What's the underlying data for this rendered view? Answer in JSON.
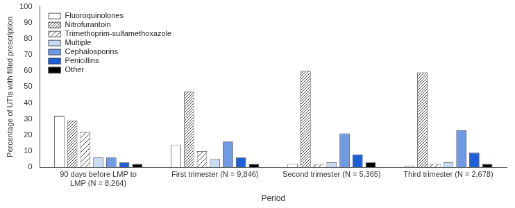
{
  "chart_data": {
    "type": "bar",
    "categories": [
      [
        "90 days before LMP to",
        "LMP (N = 8,264)"
      ],
      "First trimester (N = 9,846)",
      "Second trimester (N = 5,365)",
      "Third trimester (N = 2,678)"
    ],
    "series": [
      {
        "name": "Fluoroquinolones",
        "color": "#ffffff",
        "values": [
          32,
          14,
          2,
          1
        ]
      },
      {
        "name": "Nitrofurantoin",
        "color": "#404040",
        "values": [
          29,
          47,
          60,
          59
        ]
      },
      {
        "name": "Trimethoprim-sulfamethoxazole",
        "color": "#404040",
        "values": [
          22,
          10,
          2,
          2
        ]
      },
      {
        "name": "Multiple",
        "color": "#c9daf5",
        "values": [
          6,
          5,
          3,
          3
        ]
      },
      {
        "name": "Cephalosporins",
        "color": "#6e9be3",
        "values": [
          6,
          16,
          21,
          23
        ]
      },
      {
        "name": "Penicillins",
        "color": "#1c5fd8",
        "values": [
          3,
          6,
          8,
          9
        ]
      },
      {
        "name": "Other",
        "color": "#000000",
        "values": [
          2,
          2,
          3,
          2
        ]
      }
    ],
    "x_label": "Period",
    "y_label": "Percentage of UTIs with filled prescription",
    "ylim": [
      0,
      100
    ],
    "yticks": [
      0,
      10,
      20,
      30,
      40,
      50,
      60,
      70,
      80,
      90,
      100
    ],
    "grid": false,
    "legend": "top-left"
  }
}
